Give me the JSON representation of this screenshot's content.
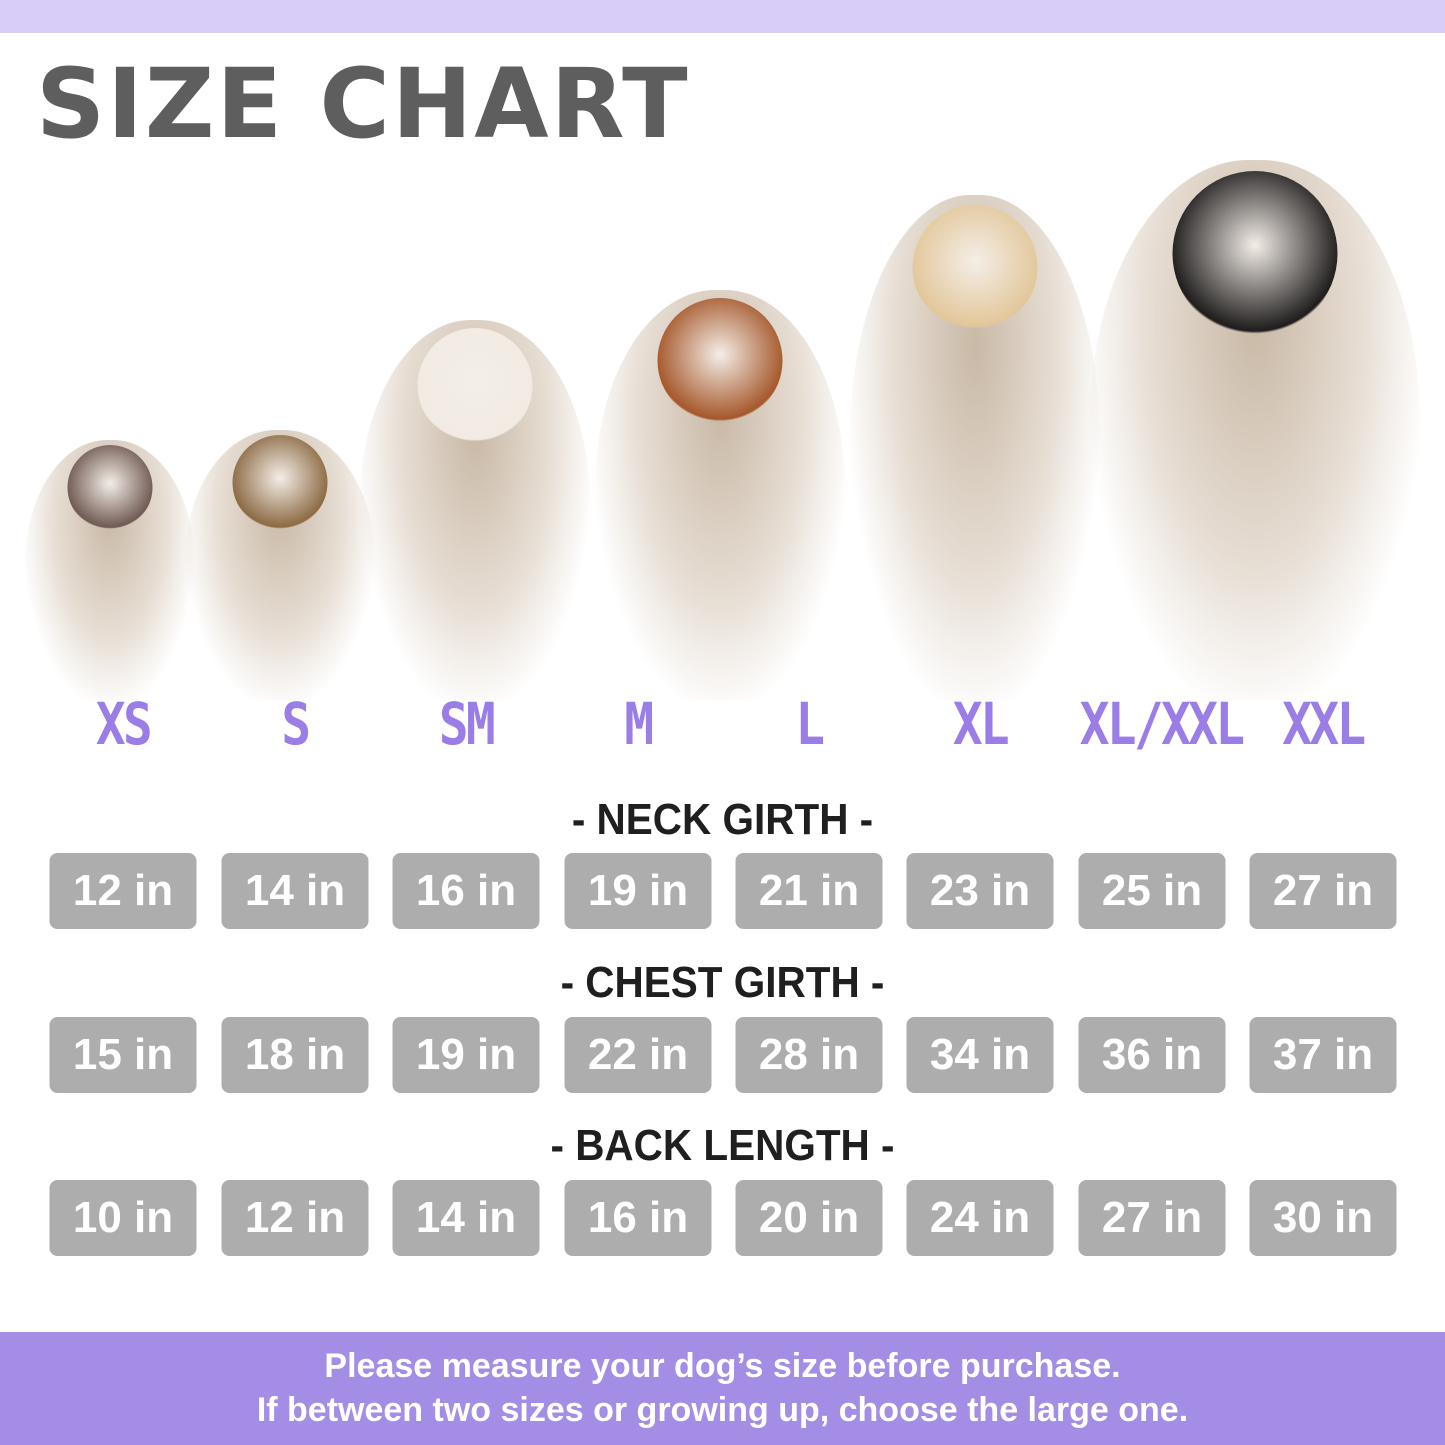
{
  "header": {
    "title": "SIZE CHART"
  },
  "colors": {
    "accent": "#9a7de6",
    "top_bar": "#d8cdf9",
    "footer_band": "#a48de4",
    "value_box": "#adadad"
  },
  "dogs": [
    {
      "size": "XS",
      "breed_image": "chihuahua"
    },
    {
      "size": "S",
      "breed_image": "yorkshire-terrier"
    },
    {
      "size": "SM",
      "breed_image": "french-bulldog"
    },
    {
      "size": "M",
      "breed_image": "beagle"
    },
    {
      "size": "L",
      "breed_image": "golden-retriever"
    },
    {
      "size": "XL",
      "breed_image": "golden-retriever"
    },
    {
      "size": "XL/XXL",
      "breed_image": "bernese-mountain-dog"
    },
    {
      "size": "XXL",
      "breed_image": "bernese-mountain-dog"
    }
  ],
  "sizes": [
    "XS",
    "S",
    "SM",
    "M",
    "L",
    "XL",
    "XL/XXL",
    "XXL"
  ],
  "measurements": [
    {
      "label": "- NECK GIRTH -",
      "values": [
        "12 in",
        "14 in",
        "16 in",
        "19 in",
        "21 in",
        "23 in",
        "25 in",
        "27 in"
      ]
    },
    {
      "label": "- CHEST GIRTH -",
      "values": [
        "15 in",
        "18 in",
        "19 in",
        "22 in",
        "28 in",
        "34 in",
        "36 in",
        "37 in"
      ]
    },
    {
      "label": "- BACK LENGTH -",
      "values": [
        "10 in",
        "12 in",
        "14 in",
        "16 in",
        "20 in",
        "24 in",
        "27 in",
        "30 in"
      ]
    }
  ],
  "footer": {
    "line1": "Please measure your dog’s size before purchase.",
    "line2": "If between two sizes or growing up, choose the large one."
  }
}
